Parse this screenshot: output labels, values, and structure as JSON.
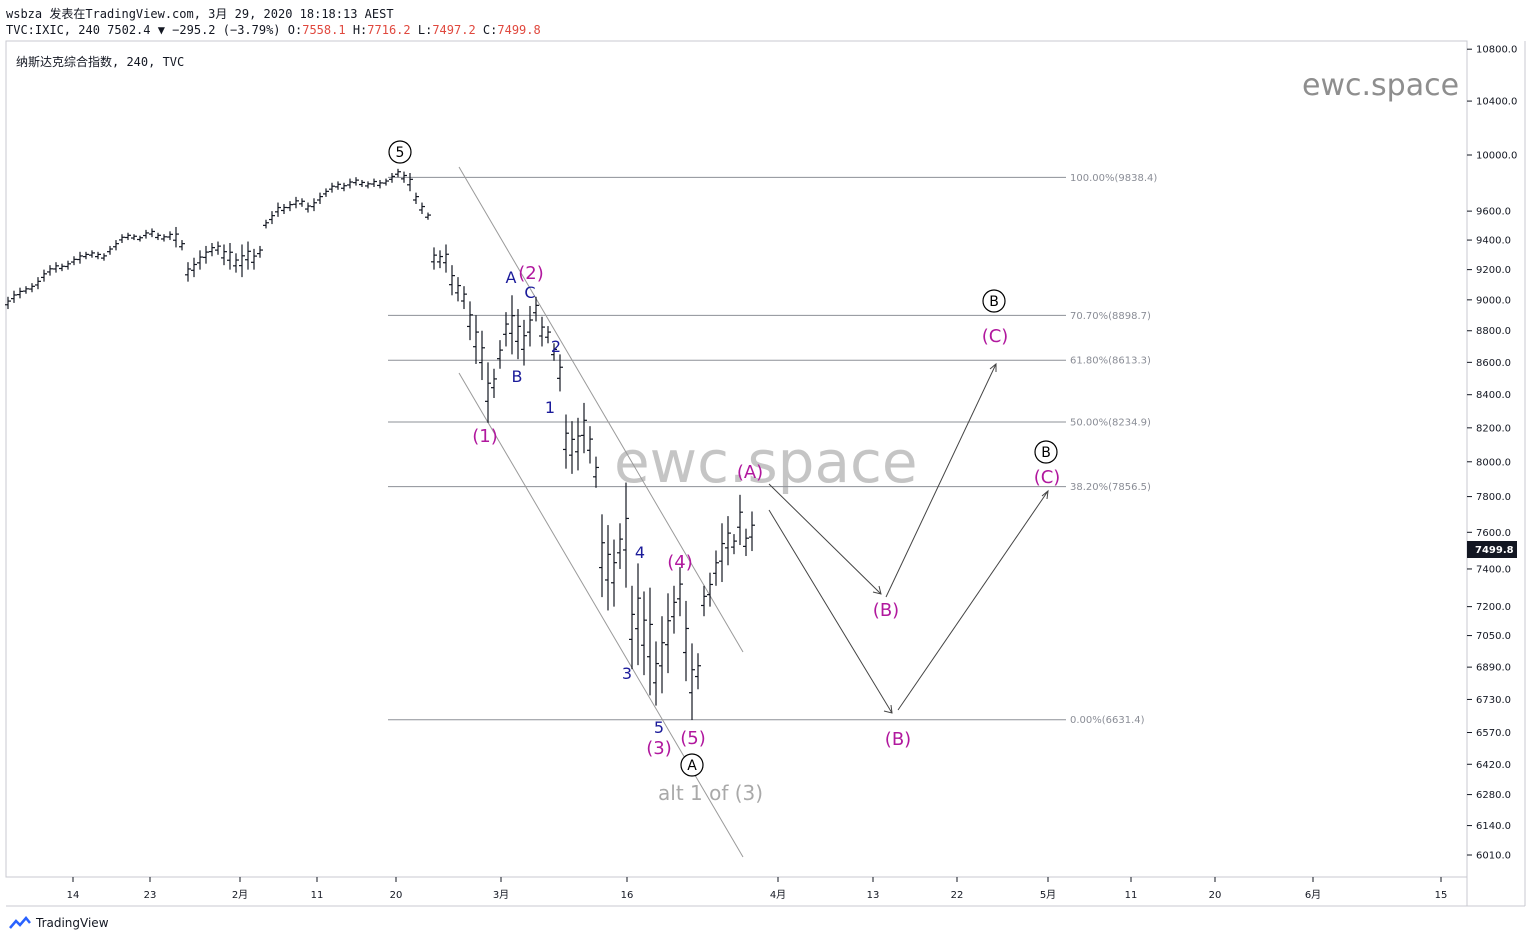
{
  "header": {
    "user": "wsbza",
    "published_text": "发表在TradingView.com, 3月 29, 2020 18:18:13 AEST",
    "symbol_line": "TVC:IXIC, 240 7502.4 ▼ −295.2 (−3.79%)",
    "open_label": "O:",
    "open": "7558.1",
    "high_label": "H:",
    "high": "7716.2",
    "low_label": "L:",
    "low": "7497.2",
    "close_label": "C:",
    "close": "7499.8"
  },
  "symbol_title": "纳斯达克综合指数, 240, TVC",
  "watermark": "ewc.space",
  "footer_brand": "TradingView",
  "colors": {
    "wave_navy": "#1b1b9a",
    "wave_magenta": "#b1189e",
    "fib_line": "#8d9097",
    "channel": "#9a9a9a",
    "bar": "#131722",
    "last_price_bg": "#131722"
  },
  "chart_data": {
    "type": "ohlc",
    "price_axis": {
      "ticks": [
        "10800.0",
        "10400.0",
        "10000.0",
        "9600.0",
        "9400.0",
        "9200.0",
        "9000.0",
        "8800.0",
        "8600.0",
        "8400.0",
        "8200.0",
        "8000.0",
        "7800.0",
        "7600.0",
        "7400.0",
        "7200.0",
        "7050.0",
        "6890.0",
        "6730.0",
        "6570.0",
        "6420.0",
        "6280.0",
        "6140.0",
        "6010.0"
      ],
      "scale": "log",
      "range": [
        5900,
        10950
      ],
      "last_price": "7499.8"
    },
    "time_axis": {
      "labels": [
        "14",
        "23",
        "2月",
        "11",
        "20",
        "3月",
        "16",
        "4月",
        "13",
        "22",
        "5月",
        "11",
        "20",
        "6月",
        "15"
      ]
    },
    "fib_levels": [
      {
        "label": "100.00%(9838.4)",
        "price": 9838.4
      },
      {
        "label": "70.70%(8898.7)",
        "price": 8898.7
      },
      {
        "label": "61.80%(8613.3)",
        "price": 8613.3
      },
      {
        "label": "50.00%(8234.9)",
        "price": 8234.9
      },
      {
        "label": "38.20%(7856.5)",
        "price": 7856.5
      },
      {
        "label": "0.00%(6631.4)",
        "price": 6631.4
      }
    ],
    "key_prices": {
      "high_feb_20": 9838.4,
      "low_mar_23": 6631.4
    },
    "wave_labels": [
      {
        "text": "5",
        "circled": true,
        "color": "black"
      },
      {
        "text": "A",
        "color": "navy"
      },
      {
        "text": "(2)",
        "color": "magenta"
      },
      {
        "text": "C",
        "color": "navy"
      },
      {
        "text": "B",
        "color": "navy"
      },
      {
        "text": "2",
        "color": "navy"
      },
      {
        "text": "1",
        "color": "navy"
      },
      {
        "text": "(1)",
        "color": "magenta"
      },
      {
        "text": "4",
        "color": "navy"
      },
      {
        "text": "(4)",
        "color": "magenta"
      },
      {
        "text": "3",
        "color": "navy"
      },
      {
        "text": "5",
        "color": "navy"
      },
      {
        "text": "(3)",
        "color": "magenta"
      },
      {
        "text": "(5)",
        "color": "magenta"
      },
      {
        "text": "A",
        "circled": true,
        "color": "black"
      },
      {
        "text": "(A)",
        "color": "magenta"
      },
      {
        "text": "(B)",
        "color": "magenta"
      },
      {
        "text": "(B)",
        "color": "magenta"
      },
      {
        "text": "B",
        "circled": true,
        "color": "black"
      },
      {
        "text": "(C)",
        "color": "magenta"
      },
      {
        "text": "B",
        "circled": true,
        "color": "black"
      },
      {
        "text": "(C)",
        "color": "magenta"
      }
    ],
    "annotation": "alt 1 of (3)"
  }
}
